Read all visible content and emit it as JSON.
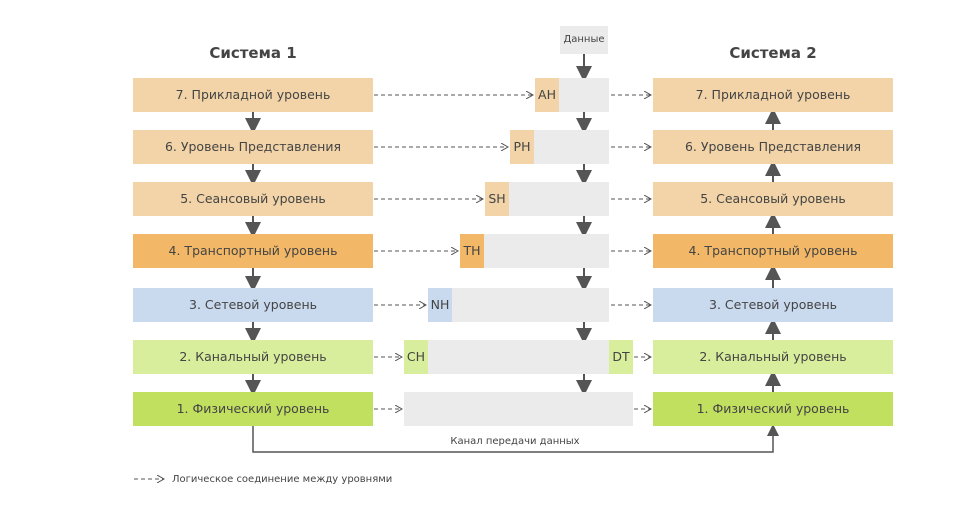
{
  "system1": {
    "title": "Система 1",
    "layers": [
      "7. Прикладной уровень",
      "6. Уровень Представления",
      "5. Сеансовый уровень",
      "4. Транспортный уровень",
      "3. Сетевой уровень",
      "2. Канальный уровень",
      "1. Физический уровень"
    ]
  },
  "system2": {
    "title": "Система 2",
    "layers": [
      "7. Прикладной уровень",
      "6. Уровень Представления",
      "5. Сеансовый уровень",
      "4. Транспортный уровень",
      "3. Сетевой уровень",
      "2. Канальный уровень",
      "1. Физический уровень"
    ]
  },
  "data_label": "Данные",
  "headers": [
    "AH",
    "PH",
    "SH",
    "TH",
    "NH",
    "CH",
    ""
  ],
  "trailer": "DT",
  "channel_label": "Канал передачи данных",
  "legend": {
    "label": "Логическое соединение между уровнями"
  },
  "colors": {
    "layer7": "#f2d4a8",
    "layer6": "#f2d4a8",
    "layer5": "#f2d4a8",
    "layer4": "#f2b867",
    "layer3": "#c9d9ee",
    "layer2": "#d9ee9c",
    "layer1": "#c2e060",
    "pdu": "#ebebeb",
    "arrow": "#555555"
  }
}
